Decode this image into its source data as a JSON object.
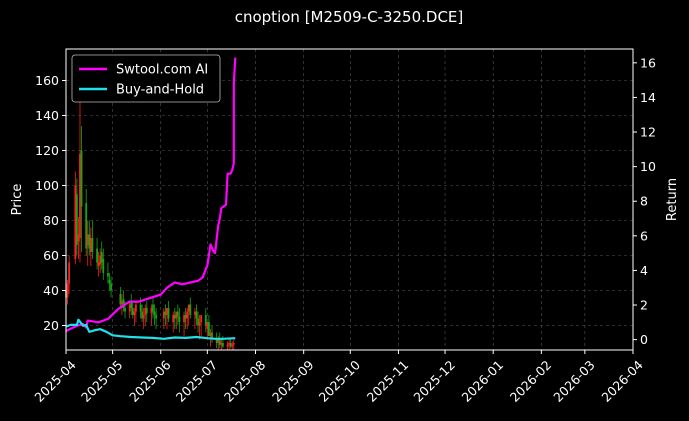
{
  "chart_data": {
    "type": "line",
    "title": "cnoption [M2509-C-3250.DCE]",
    "ylabel": "Price",
    "y2label": "Return",
    "xlim": [
      "2025-04-01",
      "2026-04-01"
    ],
    "ylim": [
      6,
      178
    ],
    "y2lim": [
      -0.6,
      16.8
    ],
    "yticks": [
      20,
      40,
      60,
      80,
      100,
      120,
      140,
      160
    ],
    "y2ticks": [
      0,
      2,
      4,
      6,
      8,
      10,
      12,
      14,
      16
    ],
    "xticks": [
      "2025-04",
      "2025-05",
      "2025-06",
      "2025-07",
      "2025-08",
      "2025-09",
      "2025-10",
      "2025-11",
      "2025-12",
      "2026-01",
      "2026-02",
      "2026-03",
      "2026-04"
    ],
    "grid": true,
    "legend_position": "top-left",
    "colors": {
      "background": "#000000",
      "up": "#ff2020",
      "down": "#14a814",
      "ai": "#ff00ff",
      "hold": "#22e0e8",
      "grid": "#555555",
      "axis": "#ffffff"
    },
    "series": [
      {
        "name": "Swtool.com AI",
        "axis": "right",
        "x": [
          "2025-04-01",
          "2025-04-08",
          "2025-04-12",
          "2025-04-14",
          "2025-04-15",
          "2025-04-22",
          "2025-04-28",
          "2025-05-05",
          "2025-05-12",
          "2025-05-18",
          "2025-05-25",
          "2025-06-01",
          "2025-06-05",
          "2025-06-10",
          "2025-06-15",
          "2025-06-20",
          "2025-06-25",
          "2025-06-28",
          "2025-07-01",
          "2025-07-03",
          "2025-07-05",
          "2025-07-06",
          "2025-07-08",
          "2025-07-09",
          "2025-07-10",
          "2025-07-13",
          "2025-07-14",
          "2025-07-16",
          "2025-07-17",
          "2025-07-18",
          "2025-07-18",
          "2025-07-19"
        ],
        "values": [
          0.5,
          0.8,
          0.9,
          0.7,
          1.1,
          1.0,
          1.2,
          1.8,
          2.2,
          2.2,
          2.4,
          2.6,
          3.0,
          3.3,
          3.2,
          3.3,
          3.4,
          3.6,
          4.3,
          5.5,
          5.1,
          5.0,
          6.6,
          7.0,
          7.6,
          7.8,
          9.6,
          9.6,
          9.8,
          10.2,
          14.8,
          16.3
        ]
      },
      {
        "name": "Buy-and-Hold",
        "axis": "right",
        "x": [
          "2025-04-01",
          "2025-04-04",
          "2025-04-08",
          "2025-04-09",
          "2025-04-12",
          "2025-04-14",
          "2025-04-16",
          "2025-04-20",
          "2025-04-23",
          "2025-04-27",
          "2025-05-01",
          "2025-05-06",
          "2025-05-13",
          "2025-05-20",
          "2025-05-27",
          "2025-06-03",
          "2025-06-10",
          "2025-06-17",
          "2025-06-24",
          "2025-06-27",
          "2025-07-01",
          "2025-07-06",
          "2025-07-11",
          "2025-07-19"
        ],
        "values": [
          0.75,
          0.85,
          0.85,
          1.15,
          0.8,
          0.85,
          0.45,
          0.55,
          0.6,
          0.45,
          0.25,
          0.2,
          0.15,
          0.12,
          0.1,
          0.05,
          0.12,
          0.1,
          0.15,
          0.12,
          0.08,
          0.05,
          0.05,
          0.08
        ]
      }
    ],
    "candles": {
      "axis": "left",
      "x": [
        "2025-04-01",
        "2025-04-02",
        "2025-04-03",
        "2025-04-07",
        "2025-04-08",
        "2025-04-09",
        "2025-04-10",
        "2025-04-11",
        "2025-04-14",
        "2025-04-15",
        "2025-04-16",
        "2025-04-17",
        "2025-04-18",
        "2025-04-21",
        "2025-04-22",
        "2025-04-23",
        "2025-04-24",
        "2025-04-25",
        "2025-04-28",
        "2025-04-29",
        "2025-04-30",
        "2025-05-06",
        "2025-05-07",
        "2025-05-08",
        "2025-05-09",
        "2025-05-12",
        "2025-05-13",
        "2025-05-14",
        "2025-05-15",
        "2025-05-16",
        "2025-05-19",
        "2025-05-20",
        "2025-05-21",
        "2025-05-22",
        "2025-05-23",
        "2025-05-26",
        "2025-05-27",
        "2025-05-28",
        "2025-05-29",
        "2025-06-03",
        "2025-06-04",
        "2025-06-05",
        "2025-06-06",
        "2025-06-09",
        "2025-06-10",
        "2025-06-11",
        "2025-06-12",
        "2025-06-13",
        "2025-06-16",
        "2025-06-17",
        "2025-06-18",
        "2025-06-19",
        "2025-06-20",
        "2025-06-23",
        "2025-06-24",
        "2025-06-25",
        "2025-06-26",
        "2025-06-27",
        "2025-06-30",
        "2025-07-01",
        "2025-07-02",
        "2025-07-03",
        "2025-07-04",
        "2025-07-07",
        "2025-07-08",
        "2025-07-09",
        "2025-07-10",
        "2025-07-11",
        "2025-07-14",
        "2025-07-15",
        "2025-07-16",
        "2025-07-17",
        "2025-07-18"
      ],
      "open": [
        40,
        36,
        44,
        58,
        95,
        68,
        70,
        120,
        90,
        66,
        72,
        62,
        70,
        64,
        54,
        55,
        62,
        58,
        50,
        46,
        44,
        38,
        32,
        35,
        30,
        28,
        34,
        30,
        26,
        28,
        32,
        28,
        24,
        26,
        30,
        27,
        32,
        28,
        26,
        24,
        28,
        26,
        30,
        22,
        26,
        24,
        28,
        25,
        22,
        26,
        24,
        28,
        32,
        26,
        28,
        24,
        20,
        22,
        26,
        18,
        22,
        14,
        16,
        12,
        10,
        12,
        9,
        10,
        8,
        9,
        10,
        8,
        9
      ],
      "high": [
        52,
        46,
        60,
        108,
        104,
        82,
        150,
        134,
        98,
        80,
        80,
        76,
        80,
        70,
        62,
        64,
        68,
        64,
        56,
        50,
        48,
        42,
        38,
        40,
        34,
        34,
        38,
        34,
        30,
        34,
        36,
        32,
        30,
        32,
        34,
        32,
        36,
        32,
        30,
        30,
        32,
        30,
        34,
        28,
        30,
        28,
        32,
        30,
        28,
        30,
        30,
        32,
        36,
        30,
        32,
        28,
        26,
        26,
        30,
        22,
        26,
        18,
        20,
        16,
        14,
        16,
        12,
        14,
        11,
        12,
        13,
        11,
        12
      ],
      "low": [
        34,
        32,
        38,
        55,
        60,
        58,
        56,
        62,
        60,
        54,
        60,
        54,
        58,
        52,
        48,
        50,
        52,
        46,
        44,
        40,
        36,
        30,
        26,
        28,
        24,
        24,
        26,
        24,
        20,
        22,
        24,
        22,
        18,
        20,
        22,
        20,
        24,
        20,
        18,
        18,
        20,
        18,
        22,
        16,
        18,
        18,
        20,
        16,
        14,
        18,
        18,
        20,
        24,
        18,
        20,
        16,
        12,
        14,
        16,
        12,
        14,
        8,
        10,
        7,
        6,
        7,
        6,
        7,
        6,
        6,
        7,
        6,
        6
      ],
      "close": [
        36,
        44,
        56,
        100,
        66,
        72,
        118,
        88,
        64,
        72,
        64,
        70,
        62,
        56,
        56,
        60,
        56,
        50,
        48,
        44,
        40,
        32,
        34,
        30,
        28,
        32,
        30,
        26,
        28,
        32,
        28,
        24,
        26,
        30,
        27,
        30,
        28,
        26,
        24,
        28,
        26,
        30,
        24,
        26,
        24,
        28,
        25,
        22,
        26,
        24,
        28,
        32,
        26,
        28,
        24,
        20,
        22,
        26,
        20,
        22,
        14,
        16,
        12,
        10,
        12,
        9,
        10,
        8,
        9,
        10,
        8,
        9,
        10
      ]
    }
  }
}
